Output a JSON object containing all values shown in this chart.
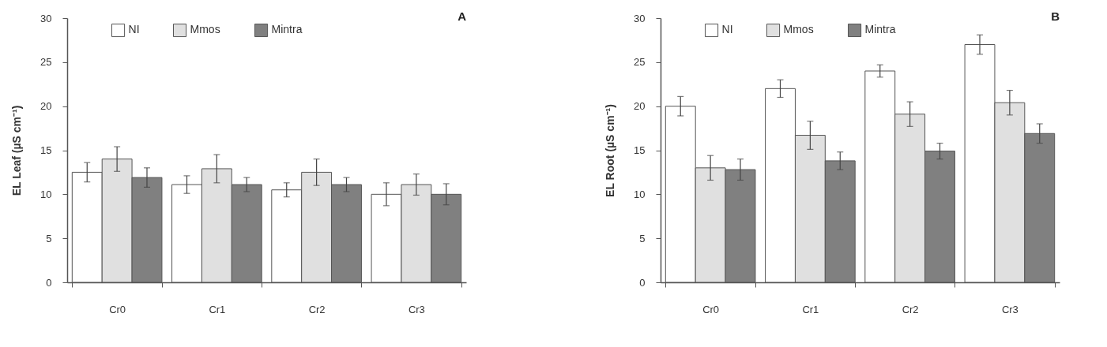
{
  "chart_data": [
    {
      "type": "bar",
      "title": "A",
      "ylabel": "EL Leaf (µS cm⁻¹)",
      "categories": [
        "Cr0",
        "Cr1",
        "Cr2",
        "Cr3"
      ],
      "ylim": [
        0,
        30
      ],
      "yticks": [
        0,
        5,
        10,
        15,
        20,
        25,
        30
      ],
      "grid": false,
      "legend": "top",
      "series": [
        {
          "name": "NI",
          "color": "#ffffff",
          "values": [
            12.5,
            11.1,
            10.5,
            10.0
          ],
          "errors": [
            1.1,
            1.0,
            0.8,
            1.3
          ]
        },
        {
          "name": "Mmos",
          "color": "#e0e0e0",
          "values": [
            14.0,
            12.9,
            12.5,
            11.1
          ],
          "errors": [
            1.4,
            1.6,
            1.5,
            1.2
          ]
        },
        {
          "name": "Mintra",
          "color": "#808080",
          "values": [
            11.9,
            11.1,
            11.1,
            10.0
          ],
          "errors": [
            1.1,
            0.8,
            0.8,
            1.2
          ]
        }
      ]
    },
    {
      "type": "bar",
      "title": "B",
      "ylabel": "EL Root (µS cm⁻¹)",
      "categories": [
        "Cr0",
        "Cr1",
        "Cr2",
        "Cr3"
      ],
      "ylim": [
        0,
        30
      ],
      "yticks": [
        0,
        5,
        10,
        15,
        20,
        25,
        30
      ],
      "grid": false,
      "legend": "top",
      "series": [
        {
          "name": "NI",
          "color": "#ffffff",
          "values": [
            20.0,
            22.0,
            24.0,
            27.0
          ],
          "errors": [
            1.1,
            1.0,
            0.7,
            1.1
          ]
        },
        {
          "name": "Mmos",
          "color": "#e0e0e0",
          "values": [
            13.0,
            16.7,
            19.1,
            20.4
          ],
          "errors": [
            1.4,
            1.6,
            1.4,
            1.4
          ]
        },
        {
          "name": "Mintra",
          "color": "#808080",
          "values": [
            12.8,
            13.8,
            14.9,
            16.9
          ],
          "errors": [
            1.2,
            1.0,
            0.9,
            1.1
          ]
        }
      ]
    }
  ]
}
